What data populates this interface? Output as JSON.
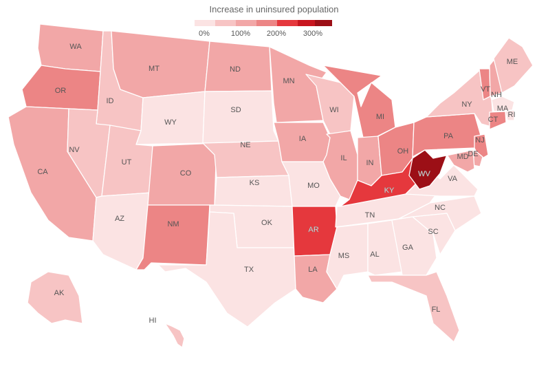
{
  "title": "Increase in uninsured population",
  "legend": {
    "colors": [
      "#fbe3e3",
      "#f7c4c4",
      "#f2a7a7",
      "#ec8585",
      "#e5383d",
      "#c8161f",
      "#9c0f16"
    ],
    "labels": [
      "0%",
      "100%",
      "200%",
      "300%"
    ]
  },
  "chart_data": {
    "type": "choropleth",
    "legend_bins": [
      "0%",
      "100%",
      "200%",
      "300%"
    ],
    "states": [
      {
        "id": "WA",
        "label": "WA",
        "bin": 2
      },
      {
        "id": "OR",
        "label": "OR",
        "bin": 3
      },
      {
        "id": "CA",
        "label": "CA",
        "bin": 2
      },
      {
        "id": "ID",
        "label": "ID",
        "bin": 1
      },
      {
        "id": "NV",
        "label": "NV",
        "bin": 1
      },
      {
        "id": "MT",
        "label": "MT",
        "bin": 2
      },
      {
        "id": "WY",
        "label": "WY",
        "bin": 0
      },
      {
        "id": "UT",
        "label": "UT",
        "bin": 1
      },
      {
        "id": "AZ",
        "label": "AZ",
        "bin": 0
      },
      {
        "id": "CO",
        "label": "CO",
        "bin": 2
      },
      {
        "id": "NM",
        "label": "NM",
        "bin": 3
      },
      {
        "id": "ND",
        "label": "ND",
        "bin": 2
      },
      {
        "id": "SD",
        "label": "SD",
        "bin": 0
      },
      {
        "id": "NE",
        "label": "NE",
        "bin": 1
      },
      {
        "id": "KS",
        "label": "KS",
        "bin": 0
      },
      {
        "id": "OK",
        "label": "OK",
        "bin": 0
      },
      {
        "id": "TX",
        "label": "TX",
        "bin": 0
      },
      {
        "id": "MN",
        "label": "MN",
        "bin": 2
      },
      {
        "id": "IA",
        "label": "IA",
        "bin": 2
      },
      {
        "id": "MO",
        "label": "MO",
        "bin": 0
      },
      {
        "id": "AR",
        "label": "AR",
        "bin": 4
      },
      {
        "id": "LA",
        "label": "LA",
        "bin": 2
      },
      {
        "id": "WI",
        "label": "WI",
        "bin": 1
      },
      {
        "id": "IL",
        "label": "IL",
        "bin": 2
      },
      {
        "id": "MI",
        "label": "MI",
        "bin": 3
      },
      {
        "id": "IN",
        "label": "IN",
        "bin": 2
      },
      {
        "id": "OH",
        "label": "OH",
        "bin": 3
      },
      {
        "id": "KY",
        "label": "KY",
        "bin": 4
      },
      {
        "id": "TN",
        "label": "TN",
        "bin": 0
      },
      {
        "id": "MS",
        "label": "MS",
        "bin": 0
      },
      {
        "id": "AL",
        "label": "AL",
        "bin": 0
      },
      {
        "id": "GA",
        "label": "GA",
        "bin": 0
      },
      {
        "id": "FL",
        "label": "FL",
        "bin": 1
      },
      {
        "id": "SC",
        "label": "SC",
        "bin": 0
      },
      {
        "id": "NC",
        "label": "NC",
        "bin": 0
      },
      {
        "id": "VA",
        "label": "VA",
        "bin": 0
      },
      {
        "id": "WV",
        "label": "WV",
        "bin": 6
      },
      {
        "id": "PA",
        "label": "PA",
        "bin": 3
      },
      {
        "id": "NY",
        "label": "NY",
        "bin": 1
      },
      {
        "id": "VT",
        "label": "VT",
        "bin": 3
      },
      {
        "id": "NH",
        "label": "NH",
        "bin": 2
      },
      {
        "id": "ME",
        "label": "ME",
        "bin": 1
      },
      {
        "id": "MA",
        "label": "MA",
        "bin": 0
      },
      {
        "id": "RI",
        "label": "RI",
        "bin": 0
      },
      {
        "id": "CT",
        "label": "CT",
        "bin": 3
      },
      {
        "id": "NJ",
        "label": "NJ",
        "bin": 3
      },
      {
        "id": "DE",
        "label": "DE",
        "bin": 2
      },
      {
        "id": "MD",
        "label": "MD",
        "bin": 2
      },
      {
        "id": "AK",
        "label": "AK",
        "bin": 1
      },
      {
        "id": "HI",
        "label": "HI",
        "bin": 1
      }
    ]
  }
}
